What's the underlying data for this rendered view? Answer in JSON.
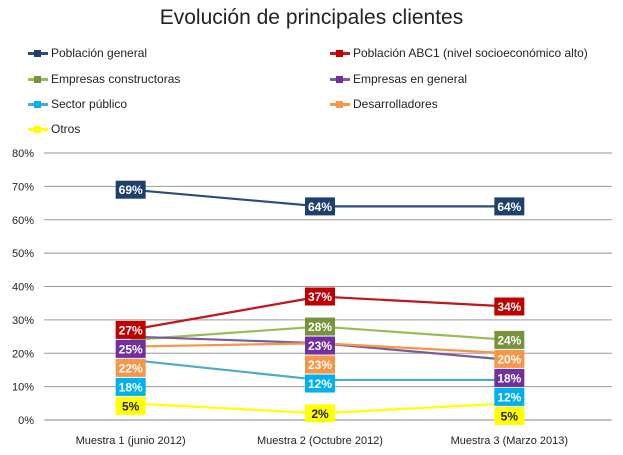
{
  "chart_data": {
    "type": "line",
    "title": "Evolución de principales clientes",
    "categories": [
      "Muestra 1 (junio 2012)",
      "Muestra 2 (Octubre 2012)",
      "Muestra 3 (Marzo 2013)"
    ],
    "ylim": [
      0,
      80
    ],
    "yticks": [
      "0%",
      "10%",
      "20%",
      "30%",
      "40%",
      "50%",
      "60%",
      "70%",
      "80%"
    ],
    "grid": true,
    "legend_position": "top",
    "series": [
      {
        "name": "Población general",
        "color": "#2c4d75",
        "label_bg": "#1f3f6e",
        "label_color": "#ffffff",
        "values": [
          69,
          64,
          64
        ],
        "labels": [
          "69%",
          "64%",
          "64%"
        ]
      },
      {
        "name": "Población ABC1 (nivel socioeconómico alto)",
        "color": "#c0161c",
        "label_bg": "#c00000",
        "label_color": "#ffffff",
        "values": [
          27,
          37,
          34
        ],
        "labels": [
          "27%",
          "37%",
          "34%"
        ]
      },
      {
        "name": "Empresas constructoras",
        "color": "#9bbb59",
        "label_bg": "#77933c",
        "label_color": "#ffffff",
        "values": [
          24,
          28,
          24
        ],
        "labels": [
          null,
          "28%",
          "24%"
        ]
      },
      {
        "name": "Empresas en general",
        "color": "#7a5c9c",
        "label_bg": "#7030a0",
        "label_color": "#ffffff",
        "values": [
          25,
          23,
          18
        ],
        "labels": [
          "25%",
          "23%",
          "18%"
        ]
      },
      {
        "name": "Sector público",
        "color": "#4bacc6",
        "label_bg": "#00b0f0",
        "label_color": "#ffffff",
        "values": [
          18,
          12,
          12
        ],
        "labels": [
          "18%",
          "12%",
          "12%"
        ]
      },
      {
        "name": "Desarrolladores",
        "color": "#f79646",
        "label_bg": "#f79646",
        "label_color": "#ffffff",
        "values": [
          22,
          23,
          20
        ],
        "labels": [
          "22%",
          "23%",
          "20%"
        ]
      },
      {
        "name": "Otros",
        "color": "#ffff00",
        "label_bg": "#ffff00",
        "label_color": "#222222",
        "values": [
          5,
          2,
          5
        ],
        "labels": [
          "5%",
          "2%",
          "5%"
        ]
      }
    ]
  }
}
